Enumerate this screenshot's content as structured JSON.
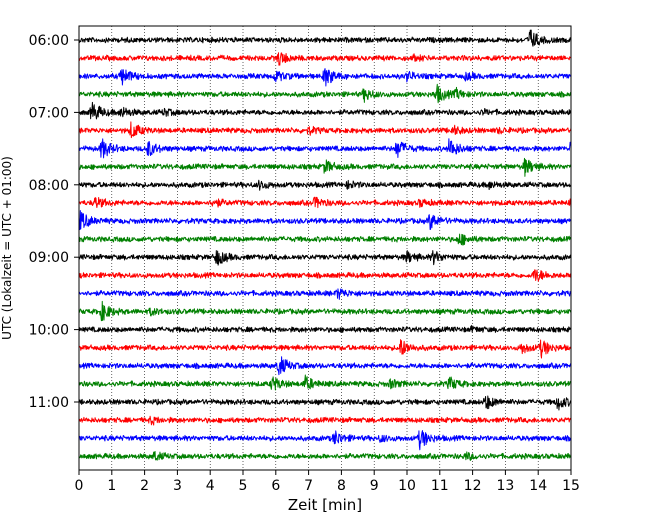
{
  "chart_data": {
    "type": "line",
    "subtype": "helicorder-seismogram",
    "title": "",
    "xlabel": "Zeit  [min]",
    "ylabel": "UTC (Lokalzeit = UTC + 01:00)",
    "xlim": [
      0,
      15
    ],
    "x_ticks": [
      0,
      1,
      2,
      3,
      4,
      5,
      6,
      7,
      8,
      9,
      10,
      11,
      12,
      13,
      14,
      15
    ],
    "x_tick_labels": [
      "0",
      "1",
      "2",
      "3",
      "4",
      "5",
      "6",
      "7",
      "8",
      "9",
      "10",
      "11",
      "12",
      "13",
      "14",
      "15"
    ],
    "y_tick_labels": [
      {
        "label": "06:00",
        "row": 0
      },
      {
        "label": "07:00",
        "row": 4
      },
      {
        "label": "08:00",
        "row": 8
      },
      {
        "label": "09:00",
        "row": 12
      },
      {
        "label": "10:00",
        "row": 16
      },
      {
        "label": "11:00",
        "row": 20
      }
    ],
    "vertical_grid": "dotted",
    "color_cycle": [
      "#000000",
      "#ff0000",
      "#0000ff",
      "#008000"
    ],
    "traces": [
      {
        "start": "06:00",
        "events": [
          {
            "t": 13.75,
            "amp": 1.0
          }
        ]
      },
      {
        "start": "06:15",
        "events": [
          {
            "t": 6.1,
            "amp": 0.7
          },
          {
            "t": 10.2,
            "amp": 0.2
          }
        ]
      },
      {
        "start": "06:30",
        "events": [
          {
            "t": 1.3,
            "amp": 0.9
          },
          {
            "t": 6.0,
            "amp": 0.5
          },
          {
            "t": 7.5,
            "amp": 1.0
          },
          {
            "t": 10.0,
            "amp": 0.4
          },
          {
            "t": 11.8,
            "amp": 0.3
          }
        ]
      },
      {
        "start": "06:45",
        "events": [
          {
            "t": 8.7,
            "amp": 0.6
          },
          {
            "t": 10.9,
            "amp": 0.9
          },
          {
            "t": 11.5,
            "amp": 0.4
          }
        ]
      },
      {
        "start": "07:00",
        "events": [
          {
            "t": 0.4,
            "amp": 1.0
          },
          {
            "t": 1.3,
            "amp": 0.5
          },
          {
            "t": 2.6,
            "amp": 0.3
          },
          {
            "t": 12.3,
            "amp": 0.2
          }
        ]
      },
      {
        "start": "07:15",
        "events": [
          {
            "t": 1.6,
            "amp": 0.8
          },
          {
            "t": 7.0,
            "amp": 0.3
          },
          {
            "t": 11.4,
            "amp": 0.4
          },
          {
            "t": 12.8,
            "amp": 0.2
          }
        ]
      },
      {
        "start": "07:30",
        "events": [
          {
            "t": 0.7,
            "amp": 1.0
          },
          {
            "t": 2.1,
            "amp": 0.8
          },
          {
            "t": 9.7,
            "amp": 0.9
          },
          {
            "t": 11.3,
            "amp": 1.0
          },
          {
            "t": 15.0,
            "amp": 0.7
          }
        ]
      },
      {
        "start": "07:45",
        "events": [
          {
            "t": 7.5,
            "amp": 0.6
          },
          {
            "t": 13.6,
            "amp": 0.8
          }
        ]
      },
      {
        "start": "08:00",
        "events": [
          {
            "t": 5.5,
            "amp": 0.4
          },
          {
            "t": 8.2,
            "amp": 0.3
          },
          {
            "t": 12.5,
            "amp": 0.3
          }
        ]
      },
      {
        "start": "08:15",
        "events": [
          {
            "t": 0.5,
            "amp": 0.5
          },
          {
            "t": 4.1,
            "amp": 0.4
          },
          {
            "t": 7.2,
            "amp": 0.5
          },
          {
            "t": 10.4,
            "amp": 0.3
          },
          {
            "t": 15.0,
            "amp": 0.5
          }
        ]
      },
      {
        "start": "08:30",
        "events": [
          {
            "t": 0.05,
            "amp": 0.9
          },
          {
            "t": 10.7,
            "amp": 0.8
          }
        ]
      },
      {
        "start": "08:45",
        "events": [
          {
            "t": 11.6,
            "amp": 0.6
          }
        ]
      },
      {
        "start": "09:00",
        "events": [
          {
            "t": 4.2,
            "amp": 0.8
          },
          {
            "t": 10.0,
            "amp": 0.5
          },
          {
            "t": 10.8,
            "amp": 0.6
          }
        ]
      },
      {
        "start": "09:15",
        "events": [
          {
            "t": 13.9,
            "amp": 0.7
          }
        ]
      },
      {
        "start": "09:30",
        "events": [
          {
            "t": 7.9,
            "amp": 0.5
          }
        ]
      },
      {
        "start": "09:45",
        "events": [
          {
            "t": 0.7,
            "amp": 0.9
          },
          {
            "t": 2.2,
            "amp": 0.3
          }
        ]
      },
      {
        "start": "10:00",
        "events": [
          {
            "t": 12.0,
            "amp": 0.2
          }
        ]
      },
      {
        "start": "10:15",
        "events": [
          {
            "t": 9.8,
            "amp": 0.9
          },
          {
            "t": 13.5,
            "amp": 0.5
          },
          {
            "t": 14.1,
            "amp": 0.8
          }
        ]
      },
      {
        "start": "10:30",
        "events": [
          {
            "t": 6.1,
            "amp": 1.0
          }
        ]
      },
      {
        "start": "10:45",
        "events": [
          {
            "t": 5.9,
            "amp": 0.7
          },
          {
            "t": 6.9,
            "amp": 0.7
          },
          {
            "t": 9.5,
            "amp": 0.4
          },
          {
            "t": 11.3,
            "amp": 0.6
          }
        ]
      },
      {
        "start": "11:00",
        "events": [
          {
            "t": 12.4,
            "amp": 0.7
          },
          {
            "t": 14.6,
            "amp": 0.7
          }
        ]
      },
      {
        "start": "11:15",
        "events": [
          {
            "t": 2.2,
            "amp": 0.3
          }
        ]
      },
      {
        "start": "11:30",
        "events": [
          {
            "t": 7.8,
            "amp": 0.7
          },
          {
            "t": 9.2,
            "amp": 0.3
          },
          {
            "t": 10.4,
            "amp": 1.0
          }
        ]
      },
      {
        "start": "11:45",
        "events": [
          {
            "t": 2.3,
            "amp": 0.4
          },
          {
            "t": 11.8,
            "amp": 0.3
          }
        ]
      }
    ]
  }
}
